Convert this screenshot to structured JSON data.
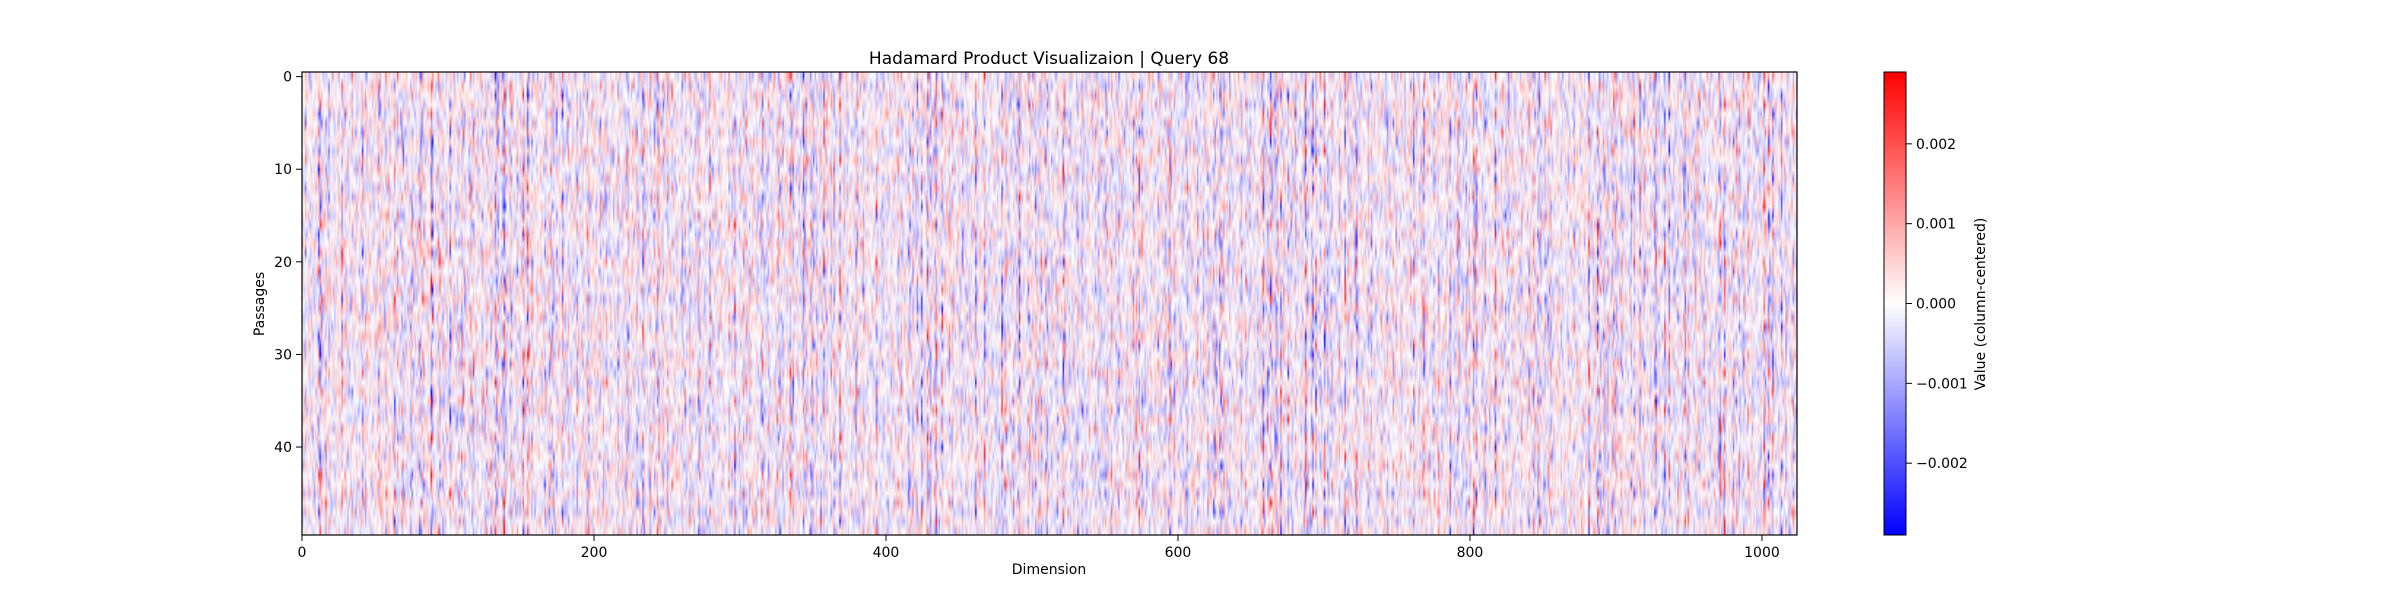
{
  "chart_data": {
    "type": "heatmap",
    "title": "Hadamard Product Visualizaion | Query 68",
    "xlabel": "Dimension",
    "ylabel": "Passages",
    "n_columns": 1024,
    "n_rows": 50,
    "xlim": [
      0,
      1024
    ],
    "ylim": [
      0,
      50
    ],
    "y_inverted": true,
    "x_ticks": [
      0,
      200,
      400,
      600,
      800,
      1000
    ],
    "x_tick_labels": [
      "0",
      "200",
      "400",
      "600",
      "800",
      "1000"
    ],
    "y_ticks": [
      0,
      10,
      20,
      30,
      40
    ],
    "y_tick_labels": [
      "0",
      "10",
      "20",
      "30",
      "40"
    ],
    "colormap": "bwr",
    "colormap_colors": [
      "#0000ff",
      "#ffffff",
      "#ff0000"
    ],
    "color_range": [
      -0.0029,
      0.0029
    ],
    "colorbar": {
      "label": "Value (column-centered)",
      "ticks": [
        0.002,
        0.001,
        0.0,
        -0.001,
        -0.002
      ],
      "tick_labels": [
        "0.002",
        "0.001",
        "0.000",
        "−0.001",
        "−0.002"
      ]
    },
    "grid": false
  }
}
